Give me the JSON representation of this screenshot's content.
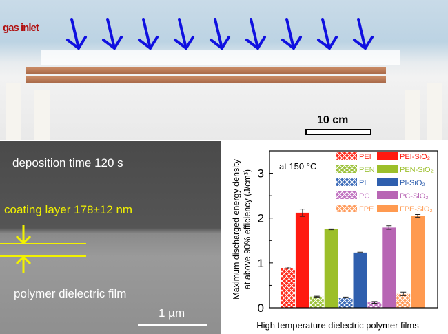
{
  "photo": {
    "label": "gas inlet",
    "scale_bar": "10 cm",
    "arrow_color": "#1010e0"
  },
  "sem": {
    "deposition": "deposition time 120 s",
    "coating": "coating layer 178±12 nm",
    "film": "polymer dielectric film",
    "scale_bar": "1 µm"
  },
  "chart_data": {
    "type": "bar",
    "annotation": "at 150 °C",
    "xlabel": "High temperature dielectric polymer films",
    "ylabel_line1": "Maximum discharged energy density",
    "ylabel_line2": "at above 90% efficiency (J/cm³)",
    "ylim": [
      0,
      3.5
    ],
    "yticks": [
      0,
      1,
      2,
      3
    ],
    "grid": false,
    "legend_position": "top-right",
    "bars": [
      {
        "name": "PEI",
        "value": 0.89,
        "error": 0.02,
        "color": "#ff2a1a",
        "hatched": true
      },
      {
        "name": "PEI-SiO₂",
        "value": 2.12,
        "error": 0.08,
        "color": "#ff1a10",
        "hatched": false
      },
      {
        "name": "PEN",
        "value": 0.25,
        "error": 0.01,
        "color": "#9cc23a",
        "hatched": true
      },
      {
        "name": "PEN-SiO₂",
        "value": 1.75,
        "error": 0.01,
        "color": "#9cbf2a",
        "hatched": false
      },
      {
        "name": "PI",
        "value": 0.23,
        "error": 0.01,
        "color": "#3a6ab8",
        "hatched": true
      },
      {
        "name": "PI-SiO₂",
        "value": 1.23,
        "error": 0.01,
        "color": "#2f5fae",
        "hatched": false
      },
      {
        "name": "PC",
        "value": 0.12,
        "error": 0.02,
        "color": "#c070c0",
        "hatched": true
      },
      {
        "name": "PC-SiO₂",
        "value": 1.79,
        "error": 0.04,
        "color": "#b866b4",
        "hatched": false
      },
      {
        "name": "FPE",
        "value": 0.31,
        "error": 0.04,
        "color": "#ff9a5a",
        "hatched": true
      },
      {
        "name": "FPE-SiO₂",
        "value": 2.05,
        "error": 0.03,
        "color": "#ff9a50",
        "hatched": false
      }
    ]
  }
}
